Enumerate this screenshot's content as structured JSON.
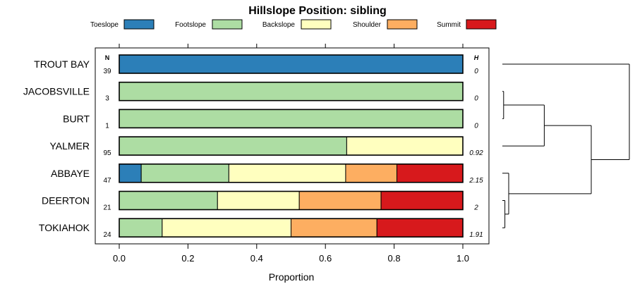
{
  "chart_data": {
    "type": "bar",
    "stacked": true,
    "orientation": "horizontal",
    "title": "Hillslope Position: sibling",
    "xlabel": "Proportion",
    "xlim": [
      0,
      1
    ],
    "xticks": [
      "0.0",
      "0.2",
      "0.4",
      "0.6",
      "0.8",
      "1.0"
    ],
    "n_header": "N",
    "h_header": "H",
    "legend_position": "top",
    "series": [
      {
        "name": "Toeslope",
        "color": "#2c7fb8"
      },
      {
        "name": "Footslope",
        "color": "#addda3"
      },
      {
        "name": "Backslope",
        "color": "#ffffbf"
      },
      {
        "name": "Shoulder",
        "color": "#fdae61"
      },
      {
        "name": "Summit",
        "color": "#d7191c"
      }
    ],
    "rows": [
      {
        "label": "TROUT BAY",
        "n": "39",
        "h": "0",
        "values": [
          1.0,
          0,
          0,
          0,
          0
        ]
      },
      {
        "label": "JACOBSVILLE",
        "n": "3",
        "h": "0",
        "values": [
          0,
          1.0,
          0,
          0,
          0
        ]
      },
      {
        "label": "BURT",
        "n": "1",
        "h": "0",
        "values": [
          0,
          1.0,
          0,
          0,
          0
        ]
      },
      {
        "label": "YALMER",
        "n": "95",
        "h": "0.92",
        "values": [
          0,
          0.662,
          0.338,
          0,
          0
        ]
      },
      {
        "label": "ABBAYE",
        "n": "47",
        "h": "2.15",
        "values": [
          0.064,
          0.255,
          0.34,
          0.149,
          0.192
        ]
      },
      {
        "label": "DEERTON",
        "n": "21",
        "h": "2",
        "values": [
          0,
          0.286,
          0.238,
          0.238,
          0.238
        ]
      },
      {
        "label": "TOKIAHOK",
        "n": "24",
        "h": "1.91",
        "values": [
          0,
          0.125,
          0.375,
          0.25,
          0.25
        ]
      }
    ],
    "dendrogram": {
      "merges": [
        {
          "a": "JACOBSVILLE",
          "b": "BURT",
          "height": 0.01
        },
        {
          "a": "DEERTON",
          "b": "TOKIAHOK",
          "height": 0.02
        },
        {
          "a": "ABBAYE",
          "b": "DEERTON+TOKIAHOK",
          "height": 0.05
        },
        {
          "a": "JACOBSVILLE+BURT",
          "b": "YALMER",
          "height": 0.33
        },
        {
          "a": "ABBAYE+DEERTON+TOKIAHOK",
          "b": "JACOBSVILLE+BURT+YALMER",
          "height": 0.7
        },
        {
          "a": "TROUT BAY",
          "b": "ALL_OTHERS",
          "height": 1.0
        }
      ]
    }
  }
}
